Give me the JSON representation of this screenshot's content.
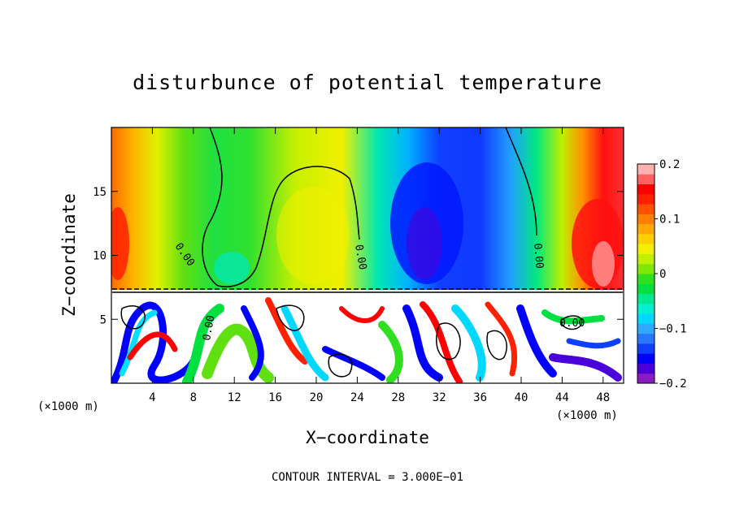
{
  "chart_data": {
    "type": "heatmap",
    "title": "disturbunce of potential temperature",
    "xlabel": "X−coordinate",
    "ylabel": "Z−coordinate",
    "x_unit_label": "(×1000 m)",
    "z_unit_label": "(×1000 m)",
    "x_ticks": [
      "4",
      "8",
      "12",
      "16",
      "20",
      "24",
      "28",
      "32",
      "36",
      "40",
      "44",
      "48"
    ],
    "z_ticks": [
      "5",
      "10",
      "15"
    ],
    "xlim": [
      0,
      50
    ],
    "zlim": [
      0,
      20
    ],
    "colorbar": {
      "range": [
        -0.2,
        0.2
      ],
      "tick_labels": [
        "0.2",
        "0.1",
        "0",
        "−0.1",
        "−0.2"
      ],
      "tick_values": [
        0.2,
        0.1,
        0,
        -0.1,
        -0.2
      ],
      "colors": [
        "#8a1cc4",
        "#4a00d8",
        "#0000ff",
        "#1040ff",
        "#2878ff",
        "#30a8ff",
        "#00d8ff",
        "#00f0d0",
        "#00e890",
        "#00e040",
        "#30e020",
        "#80e800",
        "#c0f000",
        "#f0f000",
        "#ffd000",
        "#ffa800",
        "#ff8000",
        "#ff5000",
        "#ff2000",
        "#ff0000",
        "#ff6060",
        "#ffb0b0"
      ]
    },
    "contour_labels": [
      "0.00",
      "0.00",
      "0.00",
      "0.00",
      "0.00"
    ],
    "contour_interval_text": "CONTOUR INTERVAL = 3.000E−01",
    "field_description_upper": [
      {
        "x": 1,
        "value": 0.12
      },
      {
        "x": 6,
        "value": 0.06
      },
      {
        "x": 10,
        "value": 0.0
      },
      {
        "x": 14,
        "value": 0.02
      },
      {
        "x": 18,
        "value": 0.05
      },
      {
        "x": 22,
        "value": 0.08
      },
      {
        "x": 26,
        "value": -0.04
      },
      {
        "x": 30,
        "value": -0.16
      },
      {
        "x": 34,
        "value": -0.12
      },
      {
        "x": 38,
        "value": -0.1
      },
      {
        "x": 42,
        "value": 0.03
      },
      {
        "x": 46,
        "value": 0.14
      },
      {
        "x": 49,
        "value": 0.09
      }
    ]
  }
}
